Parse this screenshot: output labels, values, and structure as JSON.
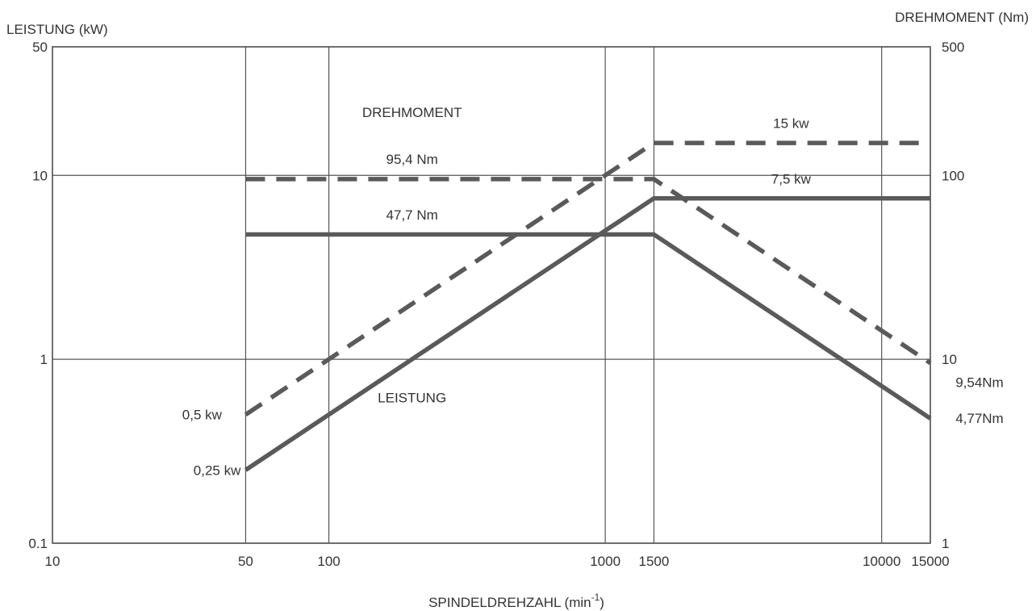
{
  "chart_data": {
    "type": "line",
    "x_scale": "log",
    "y_scale": "log",
    "left_axis_label": "LEISTUNG (kW)",
    "right_axis_label": "DREHMOMENT (Nm)",
    "xlabel_main": "SPINDELDREHZAHL (min",
    "xlabel_sup": "-1",
    "xlabel_end": ")",
    "xlim": [
      10,
      15000
    ],
    "ylim_left": [
      0.1,
      50
    ],
    "ylim_right": [
      1,
      500
    ],
    "x_ticks": [
      10,
      50,
      100,
      1000,
      1500,
      10000,
      15000
    ],
    "x_tick_labels": [
      "10",
      "50",
      "100",
      "1000",
      "1500",
      "10000",
      "15000"
    ],
    "y_left_ticks": [
      0.1,
      1,
      10,
      50
    ],
    "y_left_tick_labels": [
      "0.1",
      "1",
      "10",
      "50"
    ],
    "y_right_ticks": [
      1,
      10,
      100,
      500
    ],
    "y_right_tick_labels": [
      "1",
      "10",
      "100",
      "500"
    ],
    "grid": true,
    "series": [
      {
        "style": "dashed",
        "axis": "left",
        "x": [
          50,
          1500,
          15000
        ],
        "y": [
          0.5,
          15,
          15
        ]
      },
      {
        "style": "solid",
        "axis": "left",
        "x": [
          50,
          1500,
          15000
        ],
        "y": [
          0.25,
          7.5,
          7.5
        ]
      },
      {
        "style": "dashed",
        "axis": "right",
        "x": [
          50,
          1500,
          15000
        ],
        "y": [
          95.4,
          95.4,
          9.54
        ]
      },
      {
        "style": "solid",
        "axis": "right",
        "x": [
          50,
          1500,
          15000
        ],
        "y": [
          47.7,
          47.7,
          4.77
        ]
      }
    ],
    "annotations": [
      {
        "text": "DREHMOMENT",
        "axis": "left",
        "x": 200,
        "y": 22,
        "anchor": "middle"
      },
      {
        "text": "LEISTUNG",
        "axis": "left",
        "x": 200,
        "y": 0.62,
        "anchor": "middle"
      },
      {
        "text": "95,4 Nm",
        "axis": "left",
        "x": 200,
        "y": 12.3,
        "anchor": "middle"
      },
      {
        "text": "47,7 Nm",
        "axis": "left",
        "x": 200,
        "y": 6.1,
        "anchor": "middle"
      },
      {
        "text": "15 kw",
        "axis": "left",
        "x": 4700,
        "y": 19.2,
        "anchor": "middle"
      },
      {
        "text": "7,5 kw",
        "axis": "left",
        "x": 4700,
        "y": 9.6,
        "anchor": "middle"
      },
      {
        "text": "0,5 kw",
        "axis": "left",
        "x": 41,
        "y": 0.5,
        "anchor": "end"
      },
      {
        "text": "0,25 kw",
        "axis": "left",
        "x": 48,
        "y": 0.25,
        "anchor": "end"
      },
      {
        "text": "9,54Nm",
        "axis": "left",
        "x": 18500,
        "y": 0.75,
        "anchor": "start"
      },
      {
        "text": "4,77Nm",
        "axis": "left",
        "x": 18500,
        "y": 0.48,
        "anchor": "start"
      }
    ]
  }
}
